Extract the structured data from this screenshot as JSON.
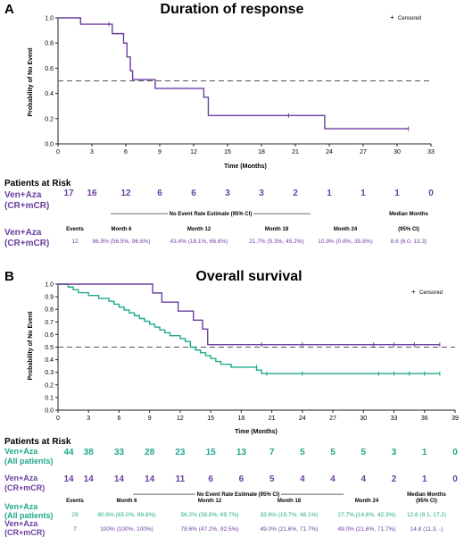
{
  "colors": {
    "purple": "#6a3fa0",
    "teal": "#1fa98b",
    "dark": "#111111",
    "ref_line": "#555555"
  },
  "panel_a": {
    "letter": "A",
    "title": "Duration of response",
    "legend_symbol": "+",
    "legend_label": "Censored",
    "xlabel": "Time (Months)",
    "ylabel": "Probability of No Event",
    "risk": {
      "header": "Patients at Risk",
      "rows": [
        {
          "label_line1": "Ven+Aza",
          "label_line2": "(CR+mCR)",
          "color": "#6a3fa0",
          "values": [
            "17",
            "16",
            "12",
            "6",
            "6",
            "3",
            "3",
            "2",
            "1",
            "1",
            "1",
            "0"
          ]
        }
      ]
    },
    "summary": {
      "banner": "-------------------------------- No Event Rate Estimate (95% CI) --------------------------------",
      "median_header": "Median Months",
      "headers": [
        "Events",
        "Month 6",
        "Month 12",
        "Month 18",
        "Month 24",
        "(95% CI)"
      ],
      "rows": [
        {
          "label_line1": "Ven+Aza",
          "label_line2": "(CR+mCR)",
          "color": "#6a3fa0",
          "cells": [
            "12",
            "86.9% (56.5%, 96.6%)",
            "43.4% (18.1%, 66.6%)",
            "21.7% (5.3%, 45.2%)",
            "10.9% (0.8%, 35.8%)",
            "8.6 (6.0, 13.3)"
          ]
        }
      ]
    }
  },
  "panel_b": {
    "letter": "B",
    "title": "Overall survival",
    "legend_symbol": "+",
    "legend_label": "Censored",
    "xlabel": "Time (Months)",
    "ylabel": "Probability of No Event",
    "risk": {
      "header": "Patients at Risk",
      "rows": [
        {
          "label_line1": "Ven+Aza",
          "label_line2": "(All patients)",
          "color": "#1fa98b",
          "values": [
            "44",
            "38",
            "33",
            "28",
            "23",
            "15",
            "13",
            "7",
            "5",
            "5",
            "5",
            "3",
            "1",
            "0"
          ]
        },
        {
          "label_line1": "Ven+Aza",
          "label_line2": "(CR+mCR)",
          "color": "#6a3fa0",
          "values": [
            "14",
            "14",
            "14",
            "14",
            "11",
            "6",
            "6",
            "5",
            "4",
            "4",
            "4",
            "2",
            "1",
            "0"
          ]
        }
      ]
    },
    "summary": {
      "banner": "----------------------------------- No Event Rate Estimate (95% CI) -----------------------------------",
      "median_header": "Median Months",
      "headers": [
        "Events",
        "Month 6",
        "Month 12",
        "Month 18",
        "Month 24",
        "(95% CI)"
      ],
      "rows": [
        {
          "label_line1": "Ven+Aza",
          "label_line2": "(All patients)",
          "color": "#1fa98b",
          "cells": [
            "29",
            "80.6% (65.0%, 89.8%)",
            "56.2% (39.8%, 69.7%)",
            "33.6% (19.7%, 48.1%)",
            "27.7% (14.8%, 42.3%)",
            "12.6 (9.1, 17.2)"
          ]
        },
        {
          "label_line1": "Ven+Aza",
          "label_line2": "(CR+mCR)",
          "color": "#6a3fa0",
          "cells": [
            "7",
            "100% (100%, 100%)",
            "78.6% (47.2%, 92.5%)",
            "49.0% (21.6%, 71.7%)",
            "49.0% (21.6%, 71.7%)",
            "14.8 (11.3, -)"
          ]
        }
      ]
    }
  },
  "chart_data": [
    {
      "type": "line",
      "subtype": "kaplan-meier step",
      "title": "Duration of response",
      "xlabel": "Time (Months)",
      "ylabel": "Probability of No Event",
      "xlim": [
        0,
        33
      ],
      "ylim": [
        0,
        1.0
      ],
      "xticks": [
        0,
        3,
        6,
        9,
        12,
        15,
        18,
        21,
        24,
        27,
        30,
        33
      ],
      "yticks": [
        0.0,
        0.2,
        0.4,
        0.6,
        0.8,
        1.0
      ],
      "reference_line": 0.5,
      "legend": "top-right",
      "series": [
        {
          "name": "Ven+Aza (CR+mCR)",
          "color": "#6a3fa0",
          "x": [
            0,
            2,
            4.8,
            5.8,
            6.1,
            6.4,
            6.6,
            7,
            8.6,
            12.9,
            13.3,
            23.6,
            31
          ],
          "y": [
            1.0,
            0.95,
            0.875,
            0.8,
            0.69,
            0.58,
            0.51,
            0.51,
            0.44,
            0.37,
            0.225,
            0.12,
            0.12
          ],
          "censored": [
            [
              4.5,
              0.95
            ],
            [
              20.4,
              0.225
            ],
            [
              31,
              0.12
            ]
          ]
        }
      ]
    },
    {
      "type": "line",
      "subtype": "kaplan-meier step",
      "title": "Overall survival",
      "xlabel": "Time (Months)",
      "ylabel": "Probability of No Event",
      "xlim": [
        0,
        39
      ],
      "ylim": [
        0,
        1.0
      ],
      "xticks": [
        0,
        3,
        6,
        9,
        12,
        15,
        18,
        21,
        24,
        27,
        30,
        33,
        36,
        39
      ],
      "yticks": [
        0.0,
        0.1,
        0.2,
        0.3,
        0.4,
        0.5,
        0.6,
        0.7,
        0.8,
        0.9,
        1.0
      ],
      "reference_line": 0.5,
      "legend": "top-right",
      "series": [
        {
          "name": "Ven+Aza (All patients)",
          "color": "#1fa98b",
          "x": [
            0,
            1,
            1.5,
            2,
            3,
            4,
            5,
            5.5,
            6,
            6.5,
            7,
            7.5,
            8,
            8.5,
            9,
            9.5,
            10,
            10.5,
            11,
            12,
            12.5,
            13,
            13.5,
            14,
            14.5,
            15,
            15.5,
            16,
            17,
            18,
            19,
            19.5,
            20,
            37.5
          ],
          "y": [
            1.0,
            0.977,
            0.955,
            0.932,
            0.91,
            0.887,
            0.864,
            0.841,
            0.818,
            0.795,
            0.772,
            0.75,
            0.727,
            0.705,
            0.682,
            0.659,
            0.636,
            0.614,
            0.591,
            0.568,
            0.545,
            0.5,
            0.477,
            0.455,
            0.432,
            0.409,
            0.386,
            0.364,
            0.341,
            0.341,
            0.341,
            0.318,
            0.29,
            0.29
          ],
          "censored": [
            [
              19.5,
              0.341
            ],
            [
              20.5,
              0.29
            ],
            [
              24,
              0.29
            ],
            [
              31.5,
              0.29
            ],
            [
              33,
              0.29
            ],
            [
              34.5,
              0.29
            ],
            [
              36,
              0.29
            ],
            [
              37.5,
              0.29
            ]
          ]
        },
        {
          "name": "Ven+Aza (CR+mCR)",
          "color": "#6a3fa0",
          "x": [
            0,
            9.3,
            10.2,
            11.8,
            13.3,
            14.2,
            14.7,
            37.5
          ],
          "y": [
            1.0,
            0.93,
            0.857,
            0.786,
            0.714,
            0.643,
            0.52,
            0.52
          ],
          "censored": [
            [
              20,
              0.52
            ],
            [
              24,
              0.52
            ],
            [
              31,
              0.52
            ],
            [
              33,
              0.52
            ],
            [
              35,
              0.52
            ],
            [
              37.5,
              0.52
            ]
          ]
        }
      ]
    }
  ]
}
